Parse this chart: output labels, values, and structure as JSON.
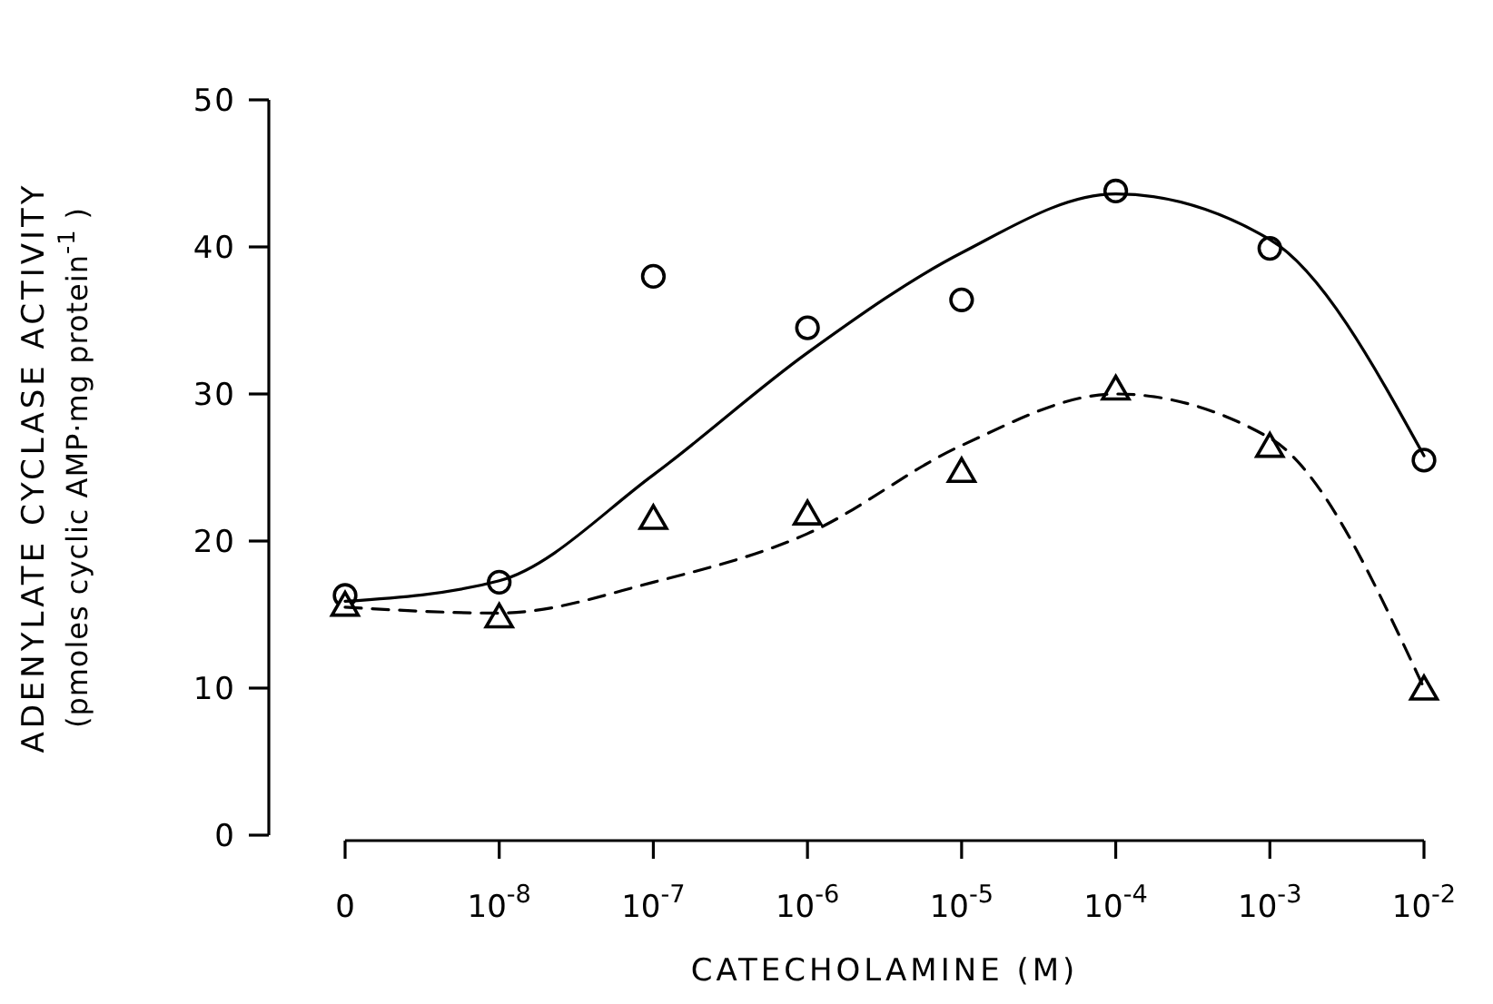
{
  "chart_data": {
    "type": "scatter",
    "xlabel": "CATECHOLAMINE (M)",
    "ylabel": "ADENYLATE CYCLASE ACTIVITY\n(pmoles cyclic AMP·mg protein$^{-1}$ )",
    "categories": [
      "0",
      "10$^{-8}$",
      "10$^{-7}$",
      "10$^{-6}$",
      "10$^{-5}$",
      "10$^{-4}$",
      "10$^{-3}$",
      "10$^{-2}$"
    ],
    "ylim": [
      0,
      50
    ],
    "yticks": [
      0,
      10,
      20,
      30,
      40,
      50
    ],
    "grid": false,
    "legend": false,
    "series": [
      {
        "marker": "circle",
        "color": "#000000",
        "values": [
          16.3,
          17.2,
          38.0,
          34.5,
          36.4,
          43.8,
          39.9,
          25.5
        ]
      },
      {
        "marker": "triangle",
        "color": "#000000",
        "values": [
          15.6,
          14.8,
          21.5,
          21.8,
          24.7,
          30.3,
          26.4,
          9.9
        ]
      },
      {
        "type": "line",
        "marker": "none",
        "line_style": "solid",
        "color": "#000000",
        "values": [
          15.9,
          17.3,
          24.5,
          32.8,
          39.6,
          43.6,
          40.5,
          25.8
        ]
      },
      {
        "type": "line",
        "marker": "none",
        "line_style": "dashed",
        "color": "#000000",
        "values": [
          15.5,
          15.1,
          17.2,
          20.5,
          26.5,
          30.0,
          27.0,
          10.0
        ]
      }
    ]
  }
}
